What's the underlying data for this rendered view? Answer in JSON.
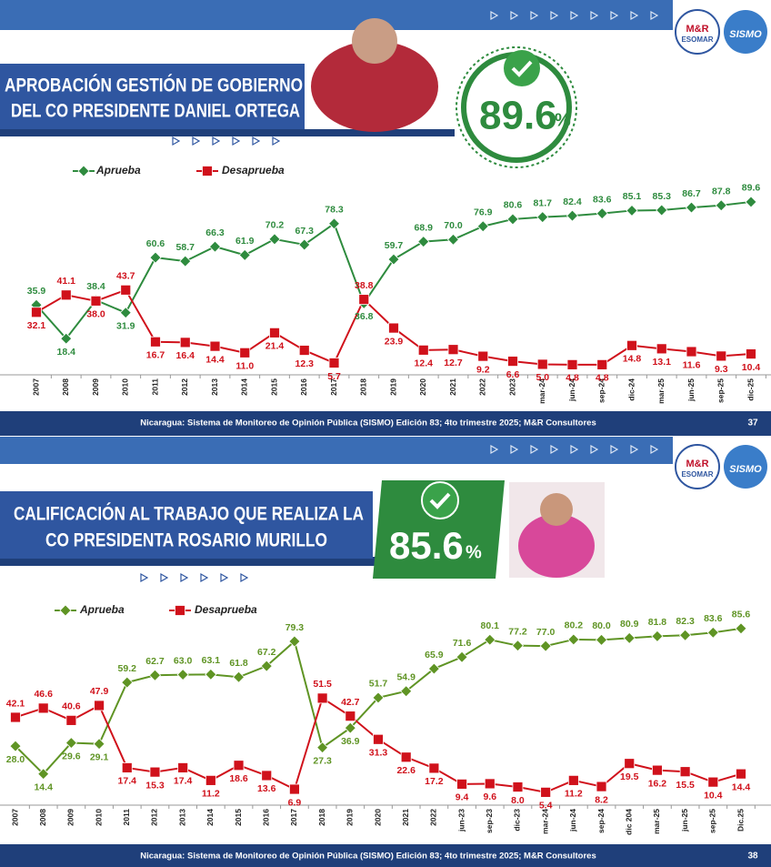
{
  "slides": [
    {
      "title_lines": [
        "APROBACIÓN GESTIÓN DE GOBIERNO",
        "DEL CO PRESIDENTE DANIEL ORTEGA"
      ],
      "highlight_value": "89.6",
      "highlight_unit": "%",
      "logo_left": [
        "M&R",
        "ESOMAR"
      ],
      "logo_right": "SISMO",
      "footer": "Nicaragua: Sistema de Monitoreo de Opinión Pública (SISMO) Edición 83; 4to trimestre 2025; M&R Consultores",
      "page": "37"
    },
    {
      "title_lines": [
        "CALIFICACIÓN AL TRABAJO QUE REALIZA LA",
        "CO PRESIDENTA ROSARIO MURILLO"
      ],
      "highlight_value": "85.6",
      "highlight_unit": "%",
      "logo_left": [
        "M&R",
        "ESOMAR"
      ],
      "logo_right": "SISMO",
      "footer": "Nicaragua: Sistema de Monitoreo de Opinión Pública (SISMO) Edición 83; 4to trimestre 2025; M&R Consultores",
      "page": "38"
    }
  ],
  "chart_data": [
    {
      "type": "line",
      "categories": [
        "2007",
        "2008",
        "2009",
        "2010",
        "2011",
        "2012",
        "2013",
        "2014",
        "2015",
        "2016",
        "2017",
        "2018",
        "2019",
        "2020",
        "2021",
        "2022",
        "2023",
        "mar-24",
        "jun-24",
        "sep-24",
        "dic-24",
        "mar-25",
        "jun-25",
        "sep-25",
        "dic-25"
      ],
      "series": [
        {
          "name": "Aprueba",
          "color": "#2e8b3e",
          "marker": "diamond",
          "values": [
            35.9,
            18.4,
            38.4,
            31.9,
            60.6,
            58.7,
            66.3,
            61.9,
            70.2,
            67.3,
            78.3,
            36.8,
            59.7,
            68.9,
            70.0,
            76.9,
            80.6,
            81.7,
            82.4,
            83.6,
            85.1,
            85.3,
            86.7,
            87.8,
            89.6
          ],
          "value_labels": [
            "35.9",
            "18.4",
            "38.4",
            "31.9",
            "60.6",
            "58.7",
            "66.3",
            "61.9",
            "70.2",
            "67.3",
            "78.3",
            "36.8",
            "59.7",
            "68.9",
            "70.0",
            "76.9",
            "80.6",
            "81.7",
            "82.4",
            "83.6",
            "85.1",
            "85.3",
            "86.7",
            "87.8",
            "89.6"
          ]
        },
        {
          "name": "Desaprueba",
          "color": "#d0111b",
          "marker": "square",
          "values": [
            32.1,
            41.1,
            38.0,
            43.7,
            16.7,
            16.4,
            14.4,
            11.0,
            21.4,
            12.3,
            5.7,
            38.8,
            23.9,
            12.4,
            12.7,
            9.2,
            6.6,
            5.0,
            4.8,
            4.8,
            14.8,
            13.1,
            11.6,
            9.3,
            10.4
          ],
          "value_labels": [
            "32.1",
            "41.1",
            "38.0",
            "43.7",
            "16.7",
            "16.4",
            "14.4",
            "11.0",
            "21.4",
            "12.3",
            "5.7",
            "38.8",
            "23.9",
            "12.4",
            "12.7",
            "9.2",
            "6.6",
            "5.0",
            "4.8",
            "4.8",
            "14.8",
            "13.1",
            "11.6",
            "9.3",
            "10.4"
          ]
        }
      ]
    },
    {
      "type": "line",
      "categories": [
        "2007",
        "2008",
        "2009",
        "2010",
        "2011",
        "2012",
        "2013",
        "2014",
        "2015",
        "2016",
        "2017",
        "2018",
        "2019",
        "2020",
        "2021",
        "2022",
        "jun-23",
        "sep-23",
        "dic-23",
        "mar-24",
        "jun-24",
        "sep-24",
        "dic 204",
        "mar-25",
        "jun-25",
        "sep-25",
        "Dic.25"
      ],
      "series": [
        {
          "name": "Aprueba",
          "color": "#5f9424",
          "marker": "diamond",
          "values": [
            28.0,
            14.4,
            29.6,
            29.1,
            59.2,
            62.7,
            63.0,
            63.1,
            61.8,
            67.2,
            79.3,
            27.3,
            36.9,
            51.7,
            54.9,
            65.9,
            71.6,
            80.1,
            77.2,
            77.0,
            80.2,
            80.0,
            80.9,
            81.8,
            82.3,
            83.6,
            85.6
          ],
          "value_labels": [
            "28.0",
            "14.4",
            "29.6",
            "29.1",
            "59.2",
            "62.7",
            "63.0",
            "63.1",
            "61.8",
            "67.2",
            "79.3",
            "27.3",
            "36.9",
            "51.7",
            "54.9",
            "65.9",
            "71.6",
            "80.1",
            "77.2",
            "77.0",
            "80.2",
            "80.0",
            "80.9",
            "81.8",
            "82.3",
            "83.6",
            "85.6"
          ]
        },
        {
          "name": "Desaprueba",
          "color": "#d0111b",
          "marker": "square",
          "values": [
            42.1,
            46.6,
            40.6,
            47.9,
            17.4,
            15.3,
            17.4,
            11.2,
            18.6,
            13.6,
            6.9,
            51.5,
            42.7,
            31.3,
            22.6,
            17.2,
            9.4,
            9.6,
            8.0,
            5.4,
            11.2,
            8.2,
            19.5,
            16.2,
            15.5,
            10.4,
            14.4
          ],
          "value_labels": [
            "42.1",
            "46.6",
            "40.6",
            "47.9",
            "17.4",
            "15.3",
            "17.4",
            "11.2",
            "18.6",
            "13.6",
            "6.9",
            "51.5",
            "42.7",
            "31.3",
            "22.6",
            "17.2",
            "9.4",
            "9.6",
            "8.0",
            "5.4",
            "11.2",
            "8.2",
            "19.5",
            "16.2",
            "15.5",
            "10.4",
            "14.4"
          ]
        }
      ]
    }
  ]
}
